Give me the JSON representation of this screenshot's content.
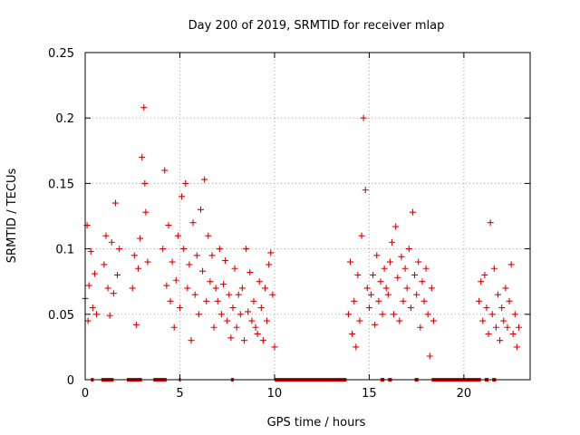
{
  "chart_data": {
    "type": "scatter",
    "title": "Day 200 of 2019, SRMTID for receiver mlap",
    "xlabel": "GPS time / hours",
    "ylabel": "SRMTID / TECUs",
    "xlim": [
      0,
      23.5
    ],
    "ylim": [
      0,
      0.25
    ],
    "x_ticks": [
      0,
      5,
      10,
      15,
      20
    ],
    "x_tick_labels": [
      "0",
      "5",
      "10",
      "15",
      "20"
    ],
    "y_ticks": [
      0,
      0.05,
      0.1,
      0.15,
      0.2,
      0.25
    ],
    "y_tick_labels": [
      "0",
      "0.05",
      "0.1",
      "0.15",
      "0.2",
      "0.25"
    ],
    "grid": true,
    "marker": "+",
    "color": "#e00000",
    "series": [
      {
        "name": "SRMTID",
        "x": [
          0.0,
          0.1,
          0.15,
          0.2,
          0.3,
          0.4,
          0.5,
          0.6,
          1.0,
          1.1,
          1.2,
          1.3,
          1.4,
          1.5,
          1.6,
          1.7,
          1.8,
          2.5,
          2.6,
          2.7,
          2.8,
          2.9,
          3.0,
          3.1,
          3.15,
          3.2,
          3.3,
          4.1,
          4.2,
          4.3,
          4.4,
          4.5,
          4.6,
          4.7,
          4.8,
          4.9,
          5.0,
          5.1,
          5.2,
          5.3,
          5.4,
          5.5,
          5.6,
          5.7,
          5.8,
          5.9,
          6.0,
          6.1,
          6.2,
          6.3,
          6.4,
          6.5,
          6.6,
          6.7,
          6.8,
          6.9,
          7.0,
          7.1,
          7.2,
          7.3,
          7.4,
          7.5,
          7.6,
          7.7,
          7.8,
          7.9,
          8.0,
          8.1,
          8.2,
          8.3,
          8.4,
          8.5,
          8.6,
          8.7,
          8.8,
          8.9,
          9.0,
          9.1,
          9.2,
          9.3,
          9.4,
          9.5,
          9.6,
          9.7,
          9.8,
          9.9,
          10.0,
          13.9,
          14.0,
          14.1,
          14.2,
          14.3,
          14.4,
          14.5,
          14.6,
          14.7,
          14.8,
          14.9,
          15.0,
          15.1,
          15.2,
          15.3,
          15.4,
          15.5,
          15.6,
          15.7,
          15.8,
          15.9,
          16.0,
          16.1,
          16.2,
          16.3,
          16.4,
          16.5,
          16.6,
          16.7,
          16.8,
          16.9,
          17.0,
          17.1,
          17.2,
          17.3,
          17.4,
          17.5,
          17.6,
          17.7,
          17.8,
          17.9,
          18.0,
          18.1,
          18.2,
          18.3,
          18.4,
          20.8,
          20.9,
          21.0,
          21.1,
          21.2,
          21.3,
          21.4,
          21.5,
          21.6,
          21.7,
          21.8,
          21.9,
          22.0,
          22.1,
          22.2,
          22.3,
          22.4,
          22.5,
          22.6,
          22.7,
          22.8,
          22.9
        ],
        "y": [
          0.062,
          0.118,
          0.045,
          0.072,
          0.098,
          0.055,
          0.081,
          0.05,
          0.088,
          0.11,
          0.07,
          0.049,
          0.105,
          0.066,
          0.135,
          0.08,
          0.1,
          0.07,
          0.095,
          0.042,
          0.085,
          0.108,
          0.17,
          0.208,
          0.15,
          0.128,
          0.09,
          0.1,
          0.16,
          0.072,
          0.118,
          0.06,
          0.09,
          0.04,
          0.076,
          0.11,
          0.055,
          0.14,
          0.1,
          0.15,
          0.07,
          0.088,
          0.03,
          0.12,
          0.065,
          0.095,
          0.05,
          0.13,
          0.083,
          0.153,
          0.06,
          0.11,
          0.075,
          0.095,
          0.04,
          0.07,
          0.06,
          0.1,
          0.05,
          0.073,
          0.091,
          0.045,
          0.065,
          0.032,
          0.055,
          0.085,
          0.04,
          0.065,
          0.05,
          0.07,
          0.03,
          0.1,
          0.052,
          0.082,
          0.045,
          0.06,
          0.04,
          0.035,
          0.075,
          0.055,
          0.03,
          0.07,
          0.045,
          0.088,
          0.097,
          0.065,
          0.025,
          0.05,
          0.09,
          0.035,
          0.06,
          0.025,
          0.08,
          0.045,
          0.11,
          0.2,
          0.145,
          0.07,
          0.055,
          0.065,
          0.08,
          0.042,
          0.095,
          0.06,
          0.075,
          0.05,
          0.085,
          0.07,
          0.065,
          0.09,
          0.105,
          0.05,
          0.117,
          0.078,
          0.045,
          0.094,
          0.06,
          0.085,
          0.07,
          0.1,
          0.055,
          0.128,
          0.08,
          0.065,
          0.09,
          0.04,
          0.075,
          0.06,
          0.085,
          0.05,
          0.018,
          0.07,
          0.045,
          0.06,
          0.075,
          0.045,
          0.08,
          0.055,
          0.035,
          0.12,
          0.05,
          0.085,
          0.04,
          0.065,
          0.03,
          0.055,
          0.045,
          0.07,
          0.04,
          0.06,
          0.088,
          0.035,
          0.05,
          0.025,
          0.04
        ]
      }
    ],
    "data_gaps_at_zero": [
      [
        0.3,
        0.45
      ],
      [
        0.85,
        1.5
      ],
      [
        2.2,
        3.0
      ],
      [
        3.6,
        4.3
      ],
      [
        4.95,
        5.05
      ],
      [
        7.7,
        7.85
      ],
      [
        10.0,
        13.8
      ],
      [
        15.6,
        15.8
      ],
      [
        16.0,
        16.2
      ],
      [
        17.4,
        17.6
      ],
      [
        18.3,
        20.9
      ],
      [
        21.1,
        21.3
      ],
      [
        21.5,
        21.7
      ]
    ]
  }
}
